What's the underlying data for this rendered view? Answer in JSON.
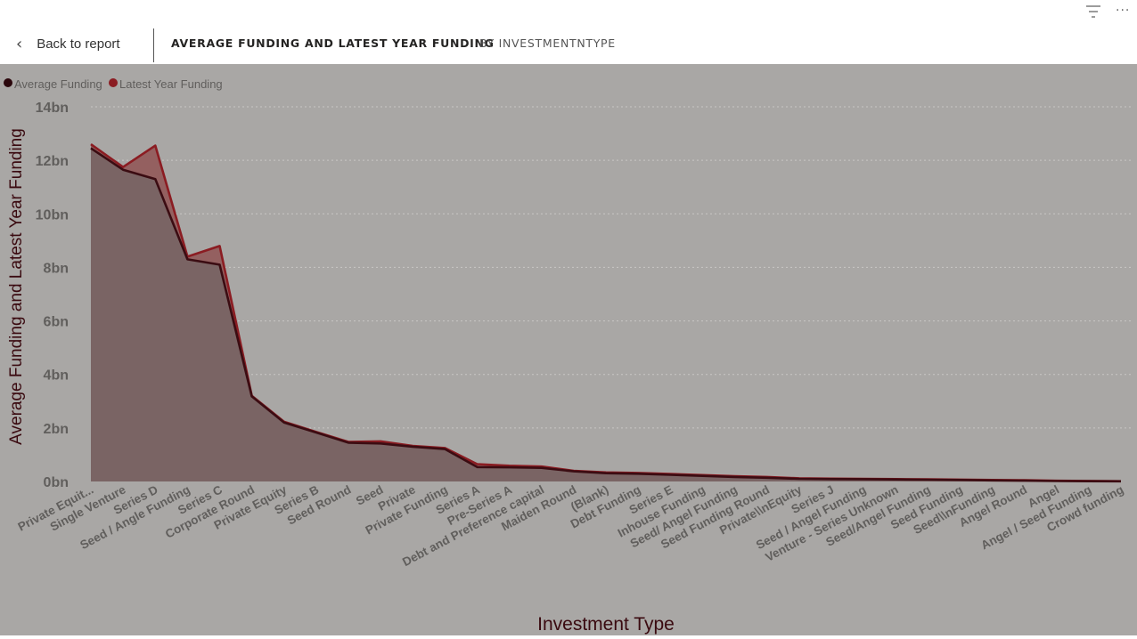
{
  "header": {
    "back_label": "Back to report",
    "title": "AVERAGE FUNDING AND LATEST YEAR FUNDING",
    "subtitle": "BY INVESTMENTNTYPE",
    "icons": [
      "filter-icon",
      "more-options-icon"
    ],
    "more_glyph": "···"
  },
  "chart_data": {
    "type": "area",
    "xlabel": "Investment Type",
    "ylabel": "Average Funding and Latest Year Funding",
    "ylim": [
      0,
      14000000000
    ],
    "yticks": [
      0,
      2000000000,
      4000000000,
      6000000000,
      8000000000,
      10000000000,
      12000000000,
      14000000000
    ],
    "ytick_labels": [
      "0bn",
      "2bn",
      "4bn",
      "6bn",
      "8bn",
      "10bn",
      "12bn",
      "14bn"
    ],
    "grid": true,
    "legend_position": "top-left",
    "categories": [
      "Private Equit...",
      "Single Venture",
      "Series D",
      "Seed / Angle Funding",
      "Series C",
      "Corporate Round",
      "Private Equity",
      "Series B",
      "Seed Round",
      "Seed",
      "Private",
      "Private Funding",
      "Series A",
      "Pre-Series A",
      "Debt and Preference capital",
      "Maiden Round",
      "(Blank)",
      "Debt Funding",
      "Series E",
      "Inhouse Funding",
      "Seed/ Angel Funding",
      "Seed Funding Round",
      "Private\\\\nEquity",
      "Series J",
      "Seed / Angel Funding",
      "Venture - Series Unknown",
      "Seed/Angel Funding",
      "Seed Funding",
      "Seed\\\\nFunding",
      "Angel Round",
      "Angel",
      "Angel / Seed Funding",
      "Crowd funding"
    ],
    "series": [
      {
        "name": "Average Funding",
        "color": "#3b0c12",
        "values": [
          12450000000,
          11650000000,
          11300000000,
          8300000000,
          8100000000,
          3180000000,
          2200000000,
          1830000000,
          1450000000,
          1420000000,
          1300000000,
          1210000000,
          540000000,
          530000000,
          510000000,
          380000000,
          310000000,
          290000000,
          250000000,
          210000000,
          170000000,
          140000000,
          100000000,
          90000000,
          85000000,
          75000000,
          65000000,
          55000000,
          40000000,
          30000000,
          15000000,
          10000000,
          5000000
        ]
      },
      {
        "name": "Latest Year Funding",
        "color": "#8b1c22",
        "values": [
          12600000000,
          11750000000,
          12550000000,
          8400000000,
          8800000000,
          3200000000,
          2230000000,
          1850000000,
          1480000000,
          1500000000,
          1330000000,
          1250000000,
          650000000,
          590000000,
          560000000,
          400000000,
          340000000,
          320000000,
          280000000,
          240000000,
          200000000,
          170000000,
          120000000,
          105000000,
          100000000,
          90000000,
          80000000,
          70000000,
          55000000,
          45000000,
          25000000,
          20000000,
          10000000
        ]
      }
    ]
  }
}
